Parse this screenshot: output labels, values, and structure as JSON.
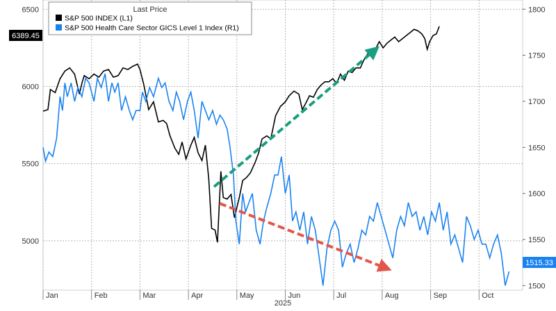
{
  "chart_data": {
    "type": "line",
    "legend": {
      "header": "Last Price",
      "placement": "top-left",
      "entries": [
        {
          "label": "S&P 500 INDEX  (L1)",
          "color": "#000000"
        },
        {
          "label": "S&P 500 Health Care Sector GICS Level 1 Index  (R1)",
          "color": "#1a82f0"
        }
      ]
    },
    "x_axis": {
      "labels": [
        "Jan",
        "Feb",
        "Mar",
        "Apr",
        "May",
        "Jun",
        "Jul",
        "Aug",
        "Sep",
        "Oct"
      ],
      "year_label": "2025",
      "range_months": [
        0,
        9.9
      ]
    },
    "y_left": {
      "ticks": [
        "5000",
        "5500",
        "6000",
        "6500"
      ],
      "range": [
        4680,
        6560
      ]
    },
    "y_right": {
      "ticks": [
        "1500",
        "1550",
        "1600",
        "1650",
        "1700",
        "1750",
        "1800"
      ],
      "range": [
        1495,
        1810
      ]
    },
    "last_price_left": {
      "label": "6389.45",
      "value": 6389.45
    },
    "last_price_right": {
      "label": "1515.33",
      "value": 1515.33
    },
    "grid": true,
    "series": [
      {
        "axis": "left",
        "color": "#000000",
        "points": [
          [
            0,
            5840
          ],
          [
            0.1,
            5850
          ],
          [
            0.15,
            5980
          ],
          [
            0.25,
            5960
          ],
          [
            0.35,
            6050
          ],
          [
            0.45,
            6100
          ],
          [
            0.55,
            6120
          ],
          [
            0.65,
            6080
          ],
          [
            0.75,
            5950
          ],
          [
            0.8,
            6020
          ],
          [
            0.85,
            6070
          ],
          [
            0.95,
            6050
          ],
          [
            1.05,
            6080
          ],
          [
            1.15,
            6060
          ],
          [
            1.25,
            6100
          ],
          [
            1.35,
            6110
          ],
          [
            1.45,
            6060
          ],
          [
            1.55,
            6070
          ],
          [
            1.65,
            6120
          ],
          [
            1.75,
            6110
          ],
          [
            1.85,
            6130
          ],
          [
            1.95,
            6145
          ],
          [
            2.0,
            6110
          ],
          [
            2.08,
            6010
          ],
          [
            2.18,
            5850
          ],
          [
            2.28,
            5900
          ],
          [
            2.38,
            5770
          ],
          [
            2.48,
            5780
          ],
          [
            2.55,
            5760
          ],
          [
            2.62,
            5680
          ],
          [
            2.72,
            5600
          ],
          [
            2.8,
            5560
          ],
          [
            2.87,
            5640
          ],
          [
            2.95,
            5530
          ],
          [
            3.05,
            5620
          ],
          [
            3.12,
            5670
          ],
          [
            3.2,
            5570
          ],
          [
            3.28,
            5520
          ],
          [
            3.35,
            5620
          ],
          [
            3.42,
            5400
          ],
          [
            3.48,
            5080
          ],
          [
            3.55,
            5070
          ],
          [
            3.6,
            4990
          ],
          [
            3.67,
            5450
          ],
          [
            3.72,
            5280
          ],
          [
            3.8,
            5270
          ],
          [
            3.88,
            5300
          ],
          [
            3.95,
            5150
          ],
          [
            4.05,
            5280
          ],
          [
            4.12,
            5390
          ],
          [
            4.2,
            5410
          ],
          [
            4.28,
            5440
          ],
          [
            4.38,
            5510
          ],
          [
            4.45,
            5570
          ],
          [
            4.52,
            5660
          ],
          [
            4.62,
            5680
          ],
          [
            4.7,
            5660
          ],
          [
            4.8,
            5810
          ],
          [
            4.9,
            5870
          ],
          [
            5.0,
            5900
          ],
          [
            5.08,
            5940
          ],
          [
            5.18,
            5970
          ],
          [
            5.28,
            5950
          ],
          [
            5.35,
            5850
          ],
          [
            5.42,
            5890
          ],
          [
            5.5,
            5940
          ],
          [
            5.58,
            5930
          ],
          [
            5.66,
            5980
          ],
          [
            5.74,
            6010
          ],
          [
            5.82,
            6030
          ],
          [
            5.9,
            6030
          ],
          [
            5.98,
            6050
          ],
          [
            6.06,
            6020
          ],
          [
            6.14,
            6080
          ],
          [
            6.22,
            6040
          ],
          [
            6.3,
            6100
          ],
          [
            6.38,
            6090
          ],
          [
            6.46,
            6120
          ],
          [
            6.55,
            6120
          ],
          [
            6.62,
            6170
          ],
          [
            6.7,
            6210
          ],
          [
            6.78,
            6220
          ],
          [
            6.86,
            6240
          ],
          [
            6.94,
            6290
          ],
          [
            7.02,
            6250
          ],
          [
            7.1,
            6280
          ],
          [
            7.18,
            6300
          ],
          [
            7.26,
            6320
          ],
          [
            7.34,
            6290
          ],
          [
            7.42,
            6310
          ],
          [
            7.5,
            6330
          ],
          [
            7.58,
            6350
          ],
          [
            7.66,
            6370
          ],
          [
            7.74,
            6360
          ],
          [
            7.82,
            6340
          ],
          [
            7.88,
            6310
          ],
          [
            7.93,
            6240
          ],
          [
            7.98,
            6290
          ],
          [
            8.05,
            6330
          ],
          [
            8.12,
            6340
          ],
          [
            8.18,
            6389.45
          ]
        ]
      },
      {
        "axis": "right",
        "color": "#1a82f0",
        "points": [
          [
            0,
            1650
          ],
          [
            0.05,
            1635
          ],
          [
            0.12,
            1645
          ],
          [
            0.2,
            1640
          ],
          [
            0.28,
            1660
          ],
          [
            0.35,
            1705
          ],
          [
            0.4,
            1690
          ],
          [
            0.45,
            1720
          ],
          [
            0.5,
            1705
          ],
          [
            0.58,
            1720
          ],
          [
            0.65,
            1700
          ],
          [
            0.72,
            1715
          ],
          [
            0.8,
            1705
          ],
          [
            0.88,
            1725
          ],
          [
            0.95,
            1720
          ],
          [
            1.05,
            1700
          ],
          [
            1.12,
            1725
          ],
          [
            1.2,
            1715
          ],
          [
            1.28,
            1730
          ],
          [
            1.35,
            1700
          ],
          [
            1.42,
            1720
          ],
          [
            1.48,
            1710
          ],
          [
            1.55,
            1720
          ],
          [
            1.62,
            1690
          ],
          [
            1.7,
            1705
          ],
          [
            1.78,
            1690
          ],
          [
            1.85,
            1680
          ],
          [
            1.92,
            1690
          ],
          [
            2.0,
            1690
          ],
          [
            2.05,
            1710
          ],
          [
            2.12,
            1700
          ],
          [
            2.2,
            1715
          ],
          [
            2.28,
            1705
          ],
          [
            2.38,
            1725
          ],
          [
            2.45,
            1715
          ],
          [
            2.52,
            1720
          ],
          [
            2.6,
            1700
          ],
          [
            2.68,
            1690
          ],
          [
            2.75,
            1710
          ],
          [
            2.82,
            1700
          ],
          [
            2.9,
            1680
          ],
          [
            2.98,
            1700
          ],
          [
            3.05,
            1710
          ],
          [
            3.12,
            1690
          ],
          [
            3.2,
            1660
          ],
          [
            3.28,
            1700
          ],
          [
            3.35,
            1690
          ],
          [
            3.42,
            1680
          ],
          [
            3.5,
            1690
          ],
          [
            3.58,
            1675
          ],
          [
            3.65,
            1685
          ],
          [
            3.72,
            1680
          ],
          [
            3.8,
            1670
          ],
          [
            3.86,
            1650
          ],
          [
            3.93,
            1620
          ],
          [
            3.98,
            1570
          ],
          [
            4.05,
            1545
          ],
          [
            4.12,
            1600
          ],
          [
            4.18,
            1580
          ],
          [
            4.25,
            1590
          ],
          [
            4.32,
            1600
          ],
          [
            4.4,
            1560
          ],
          [
            4.48,
            1545
          ],
          [
            4.55,
            1570
          ],
          [
            4.62,
            1585
          ],
          [
            4.7,
            1600
          ],
          [
            4.78,
            1620
          ],
          [
            4.85,
            1620
          ],
          [
            4.92,
            1640
          ],
          [
            5.0,
            1600
          ],
          [
            5.08,
            1620
          ],
          [
            5.15,
            1570
          ],
          [
            5.22,
            1580
          ],
          [
            5.3,
            1560
          ],
          [
            5.38,
            1580
          ],
          [
            5.46,
            1545
          ],
          [
            5.54,
            1575
          ],
          [
            5.62,
            1560
          ],
          [
            5.7,
            1530
          ],
          [
            5.78,
            1500
          ],
          [
            5.86,
            1540
          ],
          [
            5.94,
            1560
          ],
          [
            6.02,
            1570
          ],
          [
            6.1,
            1560
          ],
          [
            6.18,
            1520
          ],
          [
            6.26,
            1535
          ],
          [
            6.34,
            1545
          ],
          [
            6.42,
            1525
          ],
          [
            6.5,
            1540
          ],
          [
            6.58,
            1560
          ],
          [
            6.66,
            1555
          ],
          [
            6.74,
            1575
          ],
          [
            6.82,
            1570
          ],
          [
            6.9,
            1590
          ],
          [
            6.98,
            1575
          ],
          [
            7.06,
            1560
          ],
          [
            7.14,
            1545
          ],
          [
            7.22,
            1530
          ],
          [
            7.3,
            1560
          ],
          [
            7.38,
            1575
          ],
          [
            7.46,
            1565
          ],
          [
            7.54,
            1590
          ],
          [
            7.62,
            1575
          ],
          [
            7.7,
            1580
          ],
          [
            7.78,
            1560
          ],
          [
            7.86,
            1575
          ],
          [
            7.94,
            1555
          ],
          [
            8.02,
            1580
          ],
          [
            8.1,
            1570
          ],
          [
            8.18,
            1590
          ],
          [
            8.26,
            1560
          ],
          [
            8.34,
            1580
          ],
          [
            8.42,
            1545
          ],
          [
            8.5,
            1555
          ],
          [
            8.58,
            1540
          ],
          [
            8.66,
            1525
          ],
          [
            8.74,
            1575
          ],
          [
            8.82,
            1565
          ],
          [
            8.9,
            1550
          ],
          [
            8.98,
            1560
          ],
          [
            9.06,
            1545
          ],
          [
            9.14,
            1545
          ],
          [
            9.22,
            1530
          ],
          [
            9.3,
            1545
          ],
          [
            9.38,
            1555
          ],
          [
            9.46,
            1535
          ],
          [
            9.54,
            1500
          ],
          [
            9.62,
            1515.33
          ]
        ]
      }
    ]
  }
}
